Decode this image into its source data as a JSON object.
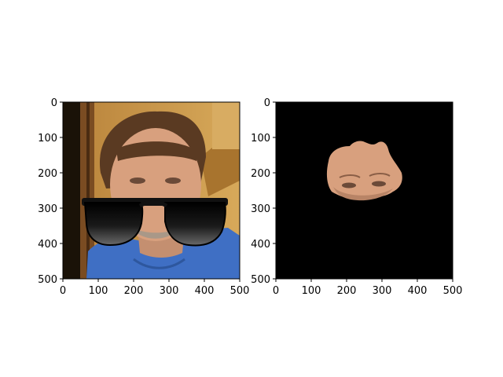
{
  "figure": {
    "panels": [
      {
        "id": "left",
        "description_kind": "photo-with-sunglasses-overlay",
        "x_ticks": [
          "0",
          "100",
          "200",
          "300",
          "400",
          "500"
        ],
        "y_ticks": [
          "0",
          "100",
          "200",
          "300",
          "400",
          "500"
        ],
        "x_range": [
          0,
          500
        ],
        "y_range": [
          0,
          500
        ],
        "y_inverted": true
      },
      {
        "id": "right",
        "description_kind": "masked-face-crop",
        "x_ticks": [
          "0",
          "100",
          "200",
          "300",
          "400",
          "500"
        ],
        "y_ticks": [
          "0",
          "100",
          "200",
          "300",
          "400",
          "500"
        ],
        "x_range": [
          0,
          500
        ],
        "y_range": [
          0,
          500
        ],
        "y_inverted": true
      }
    ]
  },
  "colors": {
    "axes": "#000000",
    "mask_background": "#000000",
    "shirt": "#3f6fc4",
    "skin": "#d8a07e",
    "hair": "#5a3a22",
    "wall": "#c9953e",
    "door_frame": "#7a4c22",
    "lens": "#111111"
  },
  "icons": [
    "sunglasses-icon"
  ]
}
